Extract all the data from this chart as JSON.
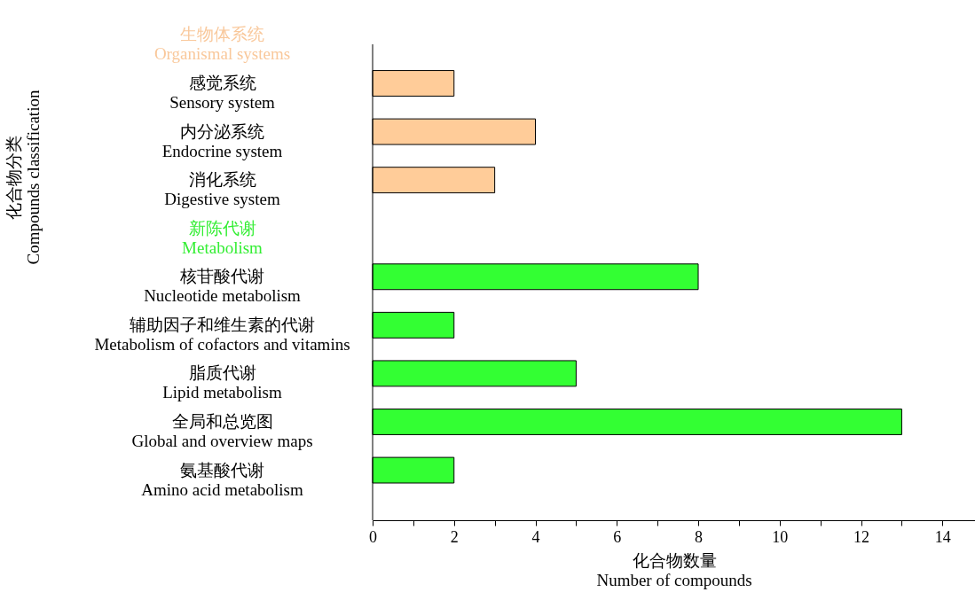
{
  "chart_data": {
    "type": "bar",
    "orientation": "horizontal",
    "xlabel": "化合物数量\nNumber of compounds",
    "ylabel": "化合物分类\nCompounds classification",
    "categories": [
      "生物体系统\nOrganismal systems",
      "感觉系统\nSensory system",
      "内分泌系统\nEndocrine system",
      "消化系统\nDigestive system",
      "新陈代谢\nMetabolism",
      "核苷酸代谢\nNucleotide metabolism",
      "辅助因子和维生素的代谢\nMetabolism of cofactors and vitamins",
      "脂质代谢\nLipid metabolism",
      "全局和总览图\nGlobal and overview maps",
      "氨基酸代谢\nAmino acid metabolism"
    ],
    "values": [
      null,
      2,
      4,
      3,
      null,
      8,
      2,
      5,
      13,
      2
    ],
    "colors": [
      "#f9c89b",
      "#ffcc99",
      "#ffcc99",
      "#ffcc99",
      "#33ee33",
      "#33ff33",
      "#33ff33",
      "#33ff33",
      "#33ff33",
      "#33ff33"
    ],
    "xlim": [
      0,
      14.8
    ],
    "xticks": [
      0,
      {
        "value": 1,
        "label": null
      },
      2,
      {
        "value": 3,
        "label": null
      },
      4,
      {
        "value": 5,
        "label": null
      },
      6,
      {
        "value": 7,
        "label": null
      },
      8,
      {
        "value": 9,
        "label": null
      },
      10,
      {
        "value": 11,
        "label": null
      },
      12,
      {
        "value": 13,
        "label": null
      },
      14
    ],
    "grid": false
  }
}
